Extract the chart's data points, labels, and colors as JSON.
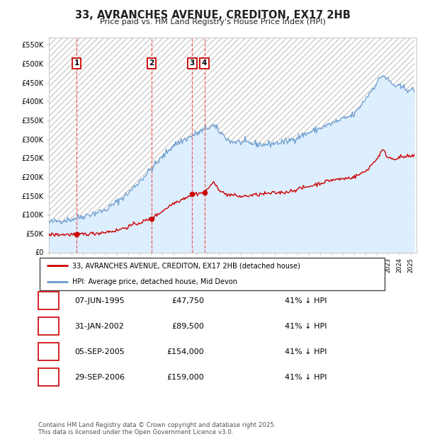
{
  "title": "33, AVRANCHES AVENUE, CREDITON, EX17 2HB",
  "subtitle": "Price paid vs. HM Land Registry's House Price Index (HPI)",
  "ylabel_ticks": [
    "£0",
    "£50K",
    "£100K",
    "£150K",
    "£200K",
    "£250K",
    "£300K",
    "£350K",
    "£400K",
    "£450K",
    "£500K",
    "£550K"
  ],
  "ytick_values": [
    0,
    50000,
    100000,
    150000,
    200000,
    250000,
    300000,
    350000,
    400000,
    450000,
    500000,
    550000
  ],
  "sale_dates_num": [
    1995.44,
    2002.08,
    2005.67,
    2006.75
  ],
  "sale_prices": [
    47750,
    89500,
    154000,
    159000
  ],
  "sale_labels": [
    "1",
    "2",
    "3",
    "4"
  ],
  "sale_date_strs": [
    "07-JUN-1995",
    "31-JAN-2002",
    "05-SEP-2005",
    "29-SEP-2006"
  ],
  "sale_price_strs": [
    "£47,750",
    "£89,500",
    "£154,000",
    "£159,000"
  ],
  "sale_pct_strs": [
    "41% ↓ HPI",
    "41% ↓ HPI",
    "41% ↓ HPI",
    "41% ↓ HPI"
  ],
  "red_line_color": "#cc0000",
  "blue_line_color": "#6699cc",
  "hpi_shade_color": "#ddeeff",
  "hatch_color": "#bbbbbb",
  "grid_color": "#cccccc",
  "annotation_box_color": "#cc0000",
  "vline_color": "#ee4444",
  "background_color": "#ffffff",
  "legend_label_red": "33, AVRANCHES AVENUE, CREDITON, EX17 2HB (detached house)",
  "legend_label_blue": "HPI: Average price, detached house, Mid Devon",
  "footer_text": "Contains HM Land Registry data © Crown copyright and database right 2025.\nThis data is licensed under the Open Government Licence v3.0.",
  "xmin": 1993.0,
  "xmax": 2025.5,
  "ymin": 0,
  "ymax": 570000,
  "fig_width": 6.0,
  "fig_height": 6.2,
  "dpi": 100
}
